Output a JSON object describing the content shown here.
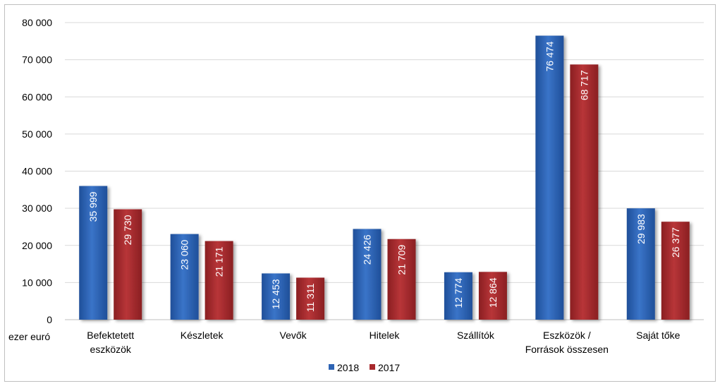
{
  "chart_data": {
    "type": "bar",
    "title": "",
    "xlabel": "",
    "ylabel": "",
    "unit_label": "ezer euró",
    "categories": [
      [
        "Befektetett",
        "eszközök"
      ],
      [
        "Készletek"
      ],
      [
        "Vevők"
      ],
      [
        "Hitelek"
      ],
      [
        "Szállítók"
      ],
      [
        "Eszközök /",
        "Források összesen"
      ],
      [
        "Saját tőke"
      ]
    ],
    "series": [
      {
        "name": "2018",
        "color": "#2e64b4",
        "values": [
          35999,
          23060,
          12453,
          24426,
          12774,
          76474,
          29983
        ]
      },
      {
        "name": "2017",
        "color": "#a8282c",
        "values": [
          29730,
          21171,
          11311,
          21709,
          12864,
          68717,
          26377
        ]
      }
    ],
    "data_labels": [
      [
        "35 999",
        "23 060",
        "12 453",
        "24 426",
        "12 774",
        "76 474",
        "29 983"
      ],
      [
        "29 730",
        "21 171",
        "11 311",
        "21 709",
        "12 864",
        "68 717",
        "26 377"
      ]
    ],
    "ylim": [
      0,
      80000
    ],
    "yticks": [
      0,
      10000,
      20000,
      30000,
      40000,
      50000,
      60000,
      70000,
      80000
    ],
    "ytick_labels": [
      "0",
      "10 000",
      "20 000",
      "30 000",
      "40 000",
      "50 000",
      "60 000",
      "70 000",
      "80 000"
    ],
    "grid": true,
    "legend_position": "bottom-center"
  }
}
